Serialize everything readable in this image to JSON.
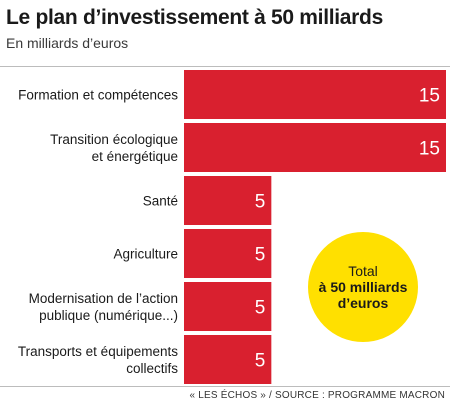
{
  "header": {
    "title": "Le plan d’investissement à 50 milliards",
    "subtitle": "En milliards d’euros"
  },
  "total_badge": {
    "line1": "Total",
    "line2": "à 50 milliards",
    "line3": "d’euros",
    "color": "#ffe000"
  },
  "footer": {
    "source": "« LES ÉCHOS » / SOURCE : PROGRAMME MACRON"
  },
  "colors": {
    "bar": "#d9202f"
  },
  "chart_data": {
    "type": "bar",
    "orientation": "horizontal",
    "title": "Le plan d’investissement à 50 milliards",
    "subtitle": "En milliards d’euros",
    "categories": [
      [
        "Formation et compétences"
      ],
      [
        "Transition écologique",
        "et énergétique"
      ],
      [
        "Santé"
      ],
      [
        "Agriculture"
      ],
      [
        "Modernisation de l’action",
        "publique (numérique...)"
      ],
      [
        "Transports et équipements",
        "collectifs"
      ]
    ],
    "values": [
      15,
      15,
      5,
      5,
      5,
      5
    ],
    "data_labels": [
      "15",
      "15",
      "5",
      "5",
      "5",
      "5"
    ],
    "xlim": [
      0,
      15
    ],
    "grid": false,
    "legend": "none"
  }
}
